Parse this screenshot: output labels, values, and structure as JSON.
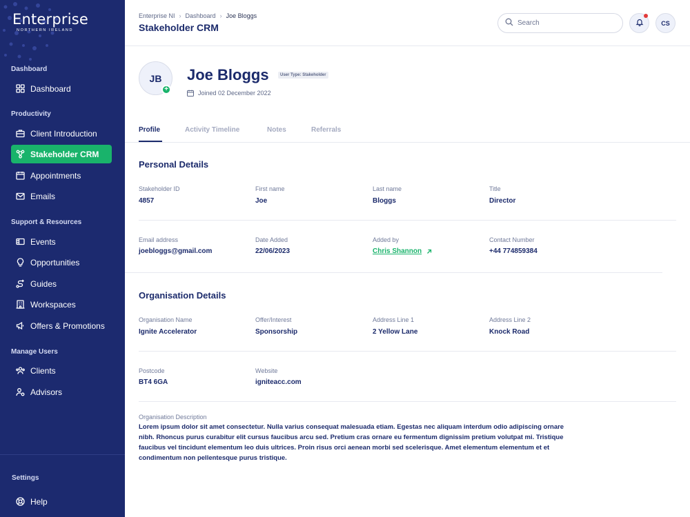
{
  "brand": {
    "name": "Enterprise",
    "subtitle": "NORTHERN IRELAND"
  },
  "sidebar": {
    "sections": [
      {
        "label": "Dashboard"
      },
      {
        "label": "Productivity"
      },
      {
        "label": "Support & Resources"
      },
      {
        "label": "Manage Users"
      }
    ],
    "items": [
      {
        "label": "Dashboard",
        "icon": "grid-icon"
      },
      {
        "label": "Client Introduction",
        "icon": "briefcase-icon"
      },
      {
        "label": "Stakeholder CRM",
        "icon": "network-icon"
      },
      {
        "label": "Appointments",
        "icon": "calendar-icon"
      },
      {
        "label": "Emails",
        "icon": "mail-icon"
      },
      {
        "label": "Events",
        "icon": "ticket-icon"
      },
      {
        "label": "Opportunities",
        "icon": "lightbulb-icon"
      },
      {
        "label": "Guides",
        "icon": "route-icon"
      },
      {
        "label": "Workspaces",
        "icon": "building-icon"
      },
      {
        "label": "Offers & Promotions",
        "icon": "megaphone-icon"
      },
      {
        "label": "Clients",
        "icon": "users-icon"
      },
      {
        "label": "Advisors",
        "icon": "advisor-icon"
      }
    ],
    "settings_label": "Settings",
    "help_label": "Help",
    "active_item": "Stakeholder CRM",
    "active_color": "#19b36b"
  },
  "header": {
    "breadcrumb": [
      "Enterprise NI",
      "Dashboard",
      "Joe Bloggs"
    ],
    "title": "Stakeholder CRM",
    "search_placeholder": "Search",
    "user_initials": "CS"
  },
  "profile": {
    "initials": "JB",
    "name": "Joe Bloggs",
    "user_type": "User Type: Stakeholder",
    "joined": "Joined 02 December 2022"
  },
  "tabs": [
    "Profile",
    "Activity Timeline",
    "Notes",
    "Referrals"
  ],
  "personal": {
    "title": "Personal Details",
    "fields": [
      {
        "label": "Stakeholder ID",
        "value": "4857"
      },
      {
        "label": "First name",
        "value": "Joe"
      },
      {
        "label": "Last name",
        "value": "Bloggs"
      },
      {
        "label": "Title",
        "value": "Director"
      },
      {
        "label": "Email address",
        "value": "joebloggs@gmail.com"
      },
      {
        "label": "Date Added",
        "value": "22/06/2023"
      },
      {
        "label": "Added by",
        "value": "Chris Shannon"
      },
      {
        "label": "Contact Number",
        "value": "+44 774859384"
      }
    ]
  },
  "organisation": {
    "title": "Organisation Details",
    "fields": [
      {
        "label": "Organisation Name",
        "value": "Ignite Accelerator"
      },
      {
        "label": "Offer/Interest",
        "value": "Sponsorship"
      },
      {
        "label": "Address Line 1",
        "value": "2 Yellow Lane"
      },
      {
        "label": "Address Line 2",
        "value": "Knock Road"
      },
      {
        "label": "Postcode",
        "value": "BT4 6GA"
      },
      {
        "label": "Website",
        "value": "igniteacc.com"
      }
    ],
    "description_label": "Organisation Description",
    "description": "Lorem ipsum dolor sit amet consectetur. Nulla varius consequat malesuada etiam. Egestas nec aliquam interdum odio adipiscing ornare nibh. Rhoncus purus curabitur elit cursus faucibus arcu sed. Pretium cras ornare eu fermentum dignissim pretium volutpat mi. Tristique faucibus vel tincidunt elementum leo duis ultrices. Proin risus orci aenean morbi sed scelerisque. Amet elementum elementum et et condimentum non pellentesque purus tristique."
  }
}
